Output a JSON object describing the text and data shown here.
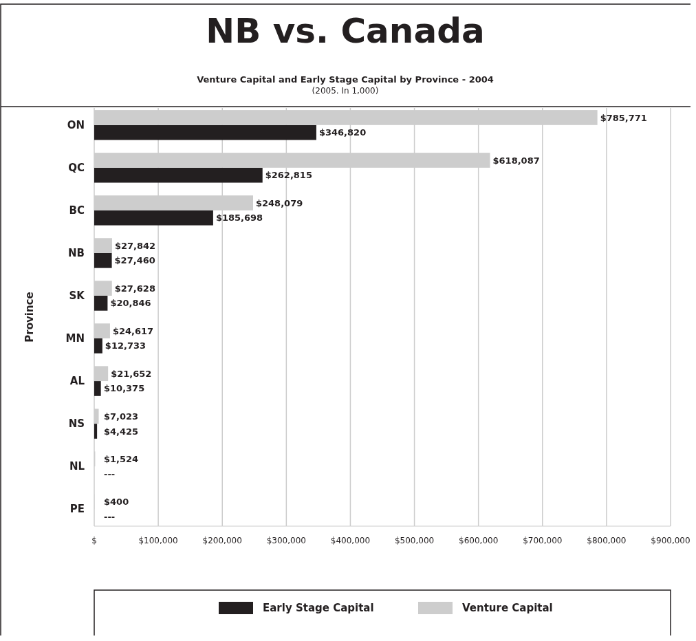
{
  "chart_data": {
    "type": "bar",
    "orientation": "horizontal",
    "title": "NB vs. Canada",
    "subtitle": "Venture Capital and Early Stage Capital by Province - 2004",
    "annotations": [
      "(2005. In 1,000)"
    ],
    "ylabel": "Province",
    "categories": [
      "ON",
      "QC",
      "BC",
      "NB",
      "SK",
      "MN",
      "AL",
      "NS",
      "NL",
      "PE"
    ],
    "series": [
      {
        "name": "Early Stage Capital",
        "color": "#231f20",
        "values": [
          346820,
          262815,
          185698,
          27460,
          20846,
          12733,
          10375,
          4425,
          null,
          null
        ],
        "value_labels": [
          "$346,820",
          "$262,815",
          "$185,698",
          "$27,460",
          "$20,846",
          "$12,733",
          "$10,375",
          "$4,425",
          "---",
          "---"
        ]
      },
      {
        "name": "Venture Capital",
        "color": "#cdcdcd",
        "values": [
          785771,
          618087,
          248079,
          27842,
          27628,
          24617,
          21652,
          7023,
          1524,
          400
        ],
        "value_labels": [
          "$785,771",
          "$618,087",
          "$248,079",
          "$27,842",
          "$27,628",
          "$24,617",
          "$21,652",
          "$7,023",
          "$1,524",
          "$400"
        ]
      }
    ],
    "xlim": [
      0,
      900000
    ],
    "xticks": [
      {
        "value": 0,
        "label": "$"
      },
      {
        "value": 100000,
        "label": "$100,000"
      },
      {
        "value": 200000,
        "label": "$200,000"
      },
      {
        "value": 300000,
        "label": "$300,000"
      },
      {
        "value": 400000,
        "label": "$400,000"
      },
      {
        "value": 500000,
        "label": "$500,000"
      },
      {
        "value": 600000,
        "label": "$600,000"
      },
      {
        "value": 700000,
        "label": "$700,000"
      },
      {
        "value": 800000,
        "label": "$800,000"
      },
      {
        "value": 900000,
        "label": "$900,000"
      }
    ],
    "grid": "x",
    "legend": "bottom"
  }
}
